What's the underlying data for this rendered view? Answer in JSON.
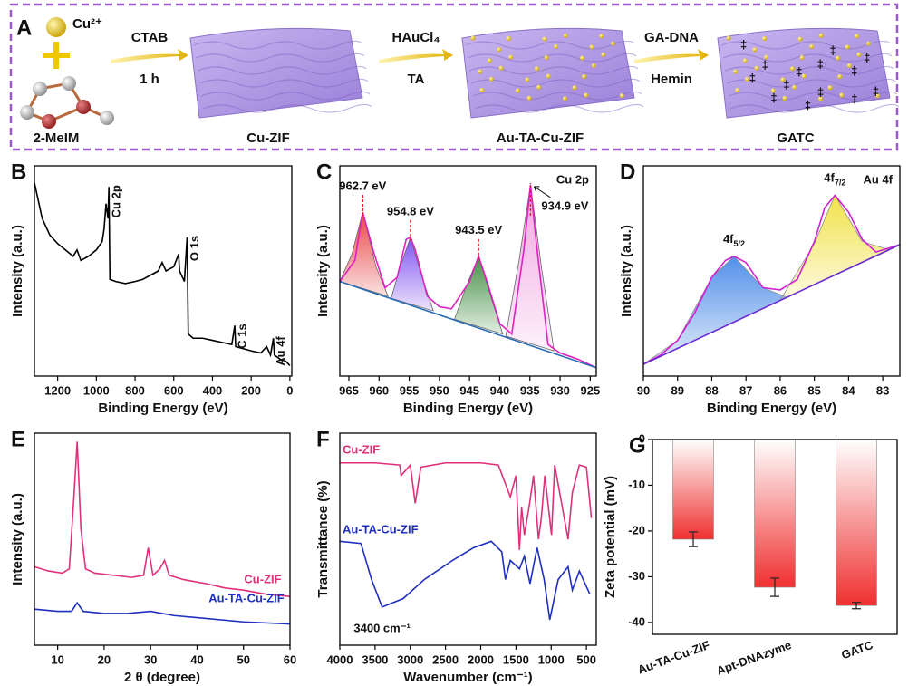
{
  "scheme": {
    "panel": "A",
    "ion": "Cu²⁺",
    "ligand": "2-MeIM",
    "steps": [
      {
        "reagent": "CTAB",
        "condition": "1 h",
        "product": "Cu-ZIF"
      },
      {
        "reagent": "HAuCl₄",
        "condition": "TA",
        "product": "Au-TA-Cu-ZIF"
      },
      {
        "reagent": "GA-DNA",
        "condition": "Hemin",
        "product": "GATC"
      }
    ]
  },
  "chart_data": [
    {
      "panel": "B",
      "type": "line",
      "xlabel": "Binding Energy (eV)",
      "ylabel": "Intensity (a.u.)",
      "xlim": [
        1320,
        -10
      ],
      "ylim": [
        0,
        100
      ],
      "xticks": [
        1200,
        1000,
        800,
        600,
        400,
        200,
        0
      ],
      "series": [
        {
          "color": "#000000",
          "x": [
            1320,
            1280,
            1240,
            1200,
            1160,
            1120,
            1100,
            1080,
            1040,
            1000,
            970,
            960,
            950,
            940,
            935,
            930,
            900,
            850,
            800,
            760,
            720,
            680,
            660,
            640,
            600,
            575,
            570,
            545,
            531,
            525,
            500,
            450,
            400,
            350,
            300,
            285,
            280,
            200,
            150,
            120,
            100,
            85,
            80,
            50,
            20,
            0
          ],
          "values": [
            92,
            75,
            67,
            63,
            60,
            57,
            60,
            55,
            57,
            60,
            64,
            70,
            82,
            75,
            90,
            46,
            45,
            44,
            45,
            46,
            48,
            50,
            54,
            50,
            52,
            58,
            50,
            45,
            66,
            20,
            18,
            18,
            17,
            16,
            15,
            24,
            14,
            12,
            11,
            14,
            10,
            18,
            10,
            8,
            7,
            5
          ]
        }
      ],
      "peak_labels": [
        {
          "text": "Cu 2p",
          "x": 935
        },
        {
          "text": "O 1s",
          "x": 531
        },
        {
          "text": "C 1s",
          "x": 285
        },
        {
          "text": "Au 4f",
          "x": 85
        }
      ]
    },
    {
      "panel": "C",
      "type": "line",
      "xlabel": "Binding Energy (eV)",
      "ylabel": "Intensity (a.u.)",
      "corner_label": "Cu 2p",
      "xlim": [
        966.5,
        924
      ],
      "ylim": [
        0,
        100
      ],
      "xticks": [
        965,
        960,
        955,
        950,
        945,
        940,
        935,
        930,
        925
      ],
      "series": [
        {
          "color": "#e020c0",
          "x": [
            966.5,
            964,
            962.7,
            961,
            959,
            957,
            955.5,
            954.8,
            954,
            952,
            950,
            948,
            945,
            943.5,
            942,
            940,
            938,
            936,
            934.9,
            934,
            932,
            930,
            927,
            924
          ],
          "values": [
            45,
            55,
            78,
            60,
            42,
            47,
            65,
            66,
            60,
            38,
            33,
            32,
            45,
            57,
            44,
            25,
            20,
            60,
            91,
            65,
            15,
            11,
            8,
            4
          ]
        },
        {
          "color": "#2a6db5",
          "x": [
            966.5,
            924
          ],
          "values": [
            45,
            4
          ]
        },
        {
          "color": "#666666",
          "fill": "#e83a3a",
          "x": [
            966.5,
            964.5,
            962.7,
            960.5,
            958.5
          ],
          "values": [
            45,
            58,
            78,
            52,
            38
          ]
        },
        {
          "color": "#666666",
          "fill": "#7a4af0",
          "x": [
            958,
            956.5,
            954.8,
            953,
            951
          ],
          "values": [
            37,
            52,
            66,
            48,
            31
          ]
        },
        {
          "color": "#666666",
          "fill": "#3c8a3c",
          "x": [
            947.5,
            945.5,
            943.5,
            941.5,
            939.5
          ],
          "values": [
            27,
            43,
            57,
            38,
            20
          ]
        },
        {
          "color": "#666666",
          "fill": "#f0a0e0",
          "x": [
            939,
            936.8,
            934.9,
            933,
            931
          ],
          "values": [
            19,
            55,
            91,
            50,
            12
          ]
        }
      ],
      "peak_labels": [
        {
          "text": "962.7 eV",
          "x": 962.7
        },
        {
          "text": "954.8 eV",
          "x": 954.8
        },
        {
          "text": "943.5 eV",
          "x": 943.5
        },
        {
          "text": "934.9 eV",
          "x": 934.9
        }
      ]
    },
    {
      "panel": "D",
      "type": "line",
      "xlabel": "Binding Energy (eV)",
      "ylabel": "Intensity (a.u.)",
      "corner_label": "Au 4f",
      "xlim": [
        90,
        82.5
      ],
      "ylim": [
        0,
        100
      ],
      "xticks": [
        90,
        89,
        88,
        87,
        86,
        85,
        84,
        83
      ],
      "series": [
        {
          "color": "#d020d0",
          "x": [
            90,
            89.5,
            89,
            88.5,
            88,
            87.6,
            87.35,
            87,
            86.5,
            86,
            85.5,
            85,
            84.7,
            84.4,
            84,
            83.6,
            83.2,
            82.8,
            82.5
          ],
          "values": [
            5.6,
            10,
            17,
            30,
            47,
            55,
            57,
            54,
            42,
            41,
            46,
            64,
            80,
            86,
            78,
            65,
            59,
            61,
            62.5
          ]
        },
        {
          "color": "#6a2bd0",
          "x": [
            90,
            82.5
          ],
          "values": [
            5.6,
            62.5
          ]
        },
        {
          "color": "#8a8a8a",
          "fill": "#4a8ae8",
          "x": [
            90,
            89,
            88,
            87.35,
            86.5,
            85.8
          ],
          "values": [
            5.6,
            17,
            47,
            57,
            42,
            37.5
          ]
        },
        {
          "color": "#8a8a8a",
          "fill": "#f0e040",
          "x": [
            86,
            85,
            84.4,
            83.6,
            82.8
          ],
          "values": [
            36,
            63,
            86,
            64,
            60
          ]
        }
      ],
      "peak_labels": [
        {
          "text": "4f",
          "sub": "5/2",
          "x": 87.35
        },
        {
          "text": "4f",
          "sub": "7/2",
          "x": 84.4
        }
      ]
    },
    {
      "panel": "E",
      "type": "line",
      "xlabel": "2 θ (degree)",
      "ylabel": "Intensity (a.u.)",
      "xlim": [
        5,
        60
      ],
      "ylim": [
        0,
        100
      ],
      "xticks": [
        10,
        20,
        30,
        40,
        50,
        60
      ],
      "series": [
        {
          "name": "Cu-ZIF",
          "color": "#e0307a",
          "x": [
            5,
            8,
            11,
            12.5,
            13.5,
            14.2,
            15,
            16,
            18,
            22,
            26,
            28.5,
            29.5,
            30.5,
            32,
            33,
            34,
            37,
            42,
            46,
            50,
            55,
            60
          ],
          "values": [
            37,
            35,
            34,
            36,
            70,
            96,
            55,
            36,
            34,
            33,
            32,
            33,
            46,
            33,
            36,
            40,
            33,
            31,
            29,
            27,
            26,
            24,
            23
          ]
        },
        {
          "name": "Au-TA-Cu-ZIF",
          "color": "#1f2fc0",
          "x": [
            5,
            10,
            13,
            14.2,
            15.5,
            20,
            25,
            30,
            35,
            40,
            50,
            60
          ],
          "values": [
            17,
            16,
            16,
            20,
            16,
            15,
            15,
            16,
            14,
            13,
            11,
            10
          ]
        }
      ]
    },
    {
      "panel": "F",
      "type": "line",
      "xlabel": "Wavenumber (cm⁻¹)",
      "ylabel": "Transmittance (%)",
      "xlim": [
        4000,
        360
      ],
      "ylim": [
        0,
        100
      ],
      "xticks": [
        4000,
        3500,
        3000,
        2500,
        2000,
        1500,
        1000,
        500
      ],
      "annotation": {
        "text": "3400 cm⁻¹",
        "x": 3400
      },
      "series": [
        {
          "name": "Cu-ZIF",
          "color": "#e0307a",
          "x": [
            4000,
            3500,
            3150,
            3130,
            3000,
            2930,
            2850,
            2500,
            2000,
            1750,
            1580,
            1500,
            1450,
            1420,
            1380,
            1310,
            1250,
            1180,
            1140,
            1090,
            995,
            950,
            760,
            700,
            600,
            500,
            430
          ],
          "values": [
            86,
            86,
            85,
            80,
            85,
            67,
            84,
            86,
            86,
            85,
            70,
            80,
            45,
            65,
            52,
            66,
            80,
            50,
            60,
            80,
            52,
            85,
            50,
            72,
            85,
            84,
            60
          ]
        },
        {
          "name": "Au-TA-Cu-ZIF",
          "color": "#1f2fc0",
          "x": [
            4000,
            3700,
            3550,
            3400,
            3100,
            2800,
            2400,
            2100,
            1850,
            1700,
            1650,
            1580,
            1450,
            1380,
            1300,
            1200,
            1100,
            1020,
            900,
            760,
            700,
            600,
            450
          ],
          "values": [
            49,
            48,
            31,
            18,
            22,
            31,
            40,
            46,
            49,
            44,
            31,
            40,
            36,
            42,
            29,
            46,
            31,
            12,
            31,
            37,
            26,
            35,
            24
          ]
        }
      ]
    },
    {
      "panel": "G",
      "type": "bar",
      "ylabel": "Zeta potential (mV)",
      "categories": [
        "Au-TA-Cu-ZIF",
        "Apt-DNAzyme",
        "GATC"
      ],
      "values": [
        -21.8,
        -32.3,
        -36.3
      ],
      "errors": [
        1.6,
        2.0,
        0.7
      ],
      "color": "#f03030",
      "ylim": [
        -42.6,
        0
      ],
      "yticks": [
        0,
        -10,
        -20,
        -30,
        -40
      ]
    }
  ]
}
